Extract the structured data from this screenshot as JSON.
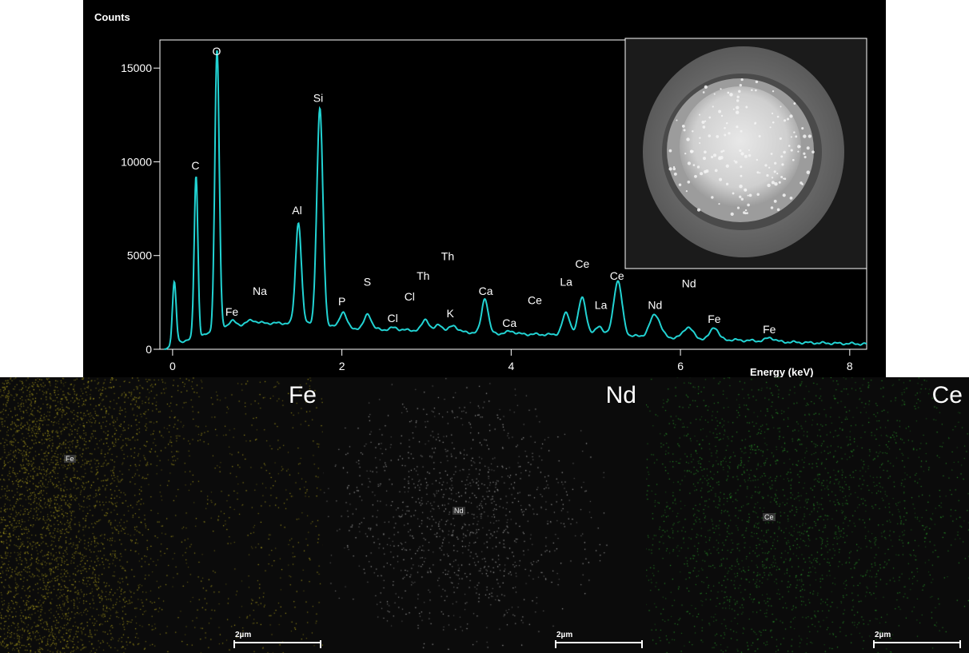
{
  "chart_data": {
    "type": "line",
    "ylabel": "Counts",
    "xlabel": "Energy (keV)",
    "xlim": [
      -0.15,
      8.2
    ],
    "ylim": [
      0,
      16500
    ],
    "x_ticks": [
      0,
      2,
      4,
      6,
      8
    ],
    "y_ticks": [
      0,
      5000,
      10000,
      15000
    ],
    "series_color": "#22d3d3",
    "baseline": [
      [
        -0.1,
        0
      ],
      [
        0.1,
        420
      ],
      [
        0.3,
        600
      ],
      [
        0.6,
        1200
      ],
      [
        1.0,
        1400
      ],
      [
        1.6,
        1380
      ],
      [
        2.0,
        1150
      ],
      [
        2.5,
        1050
      ],
      [
        3.0,
        1000
      ],
      [
        3.5,
        900
      ],
      [
        4.0,
        820
      ],
      [
        4.5,
        780
      ],
      [
        5.0,
        760
      ],
      [
        5.5,
        700
      ],
      [
        6.0,
        600
      ],
      [
        6.5,
        520
      ],
      [
        7.0,
        430
      ],
      [
        7.5,
        350
      ],
      [
        8.0,
        300
      ],
      [
        8.2,
        280
      ]
    ],
    "peaks": [
      {
        "x": 0.02,
        "h": 3300,
        "w": 0.022
      },
      {
        "x": 0.277,
        "h": 8700,
        "w": 0.022
      },
      {
        "x": 0.525,
        "h": 14950,
        "w": 0.026
      },
      {
        "x": 0.705,
        "h": 250,
        "w": 0.04
      },
      {
        "x": 0.93,
        "h": 180,
        "w": 0.05
      },
      {
        "x": 1.487,
        "h": 5400,
        "w": 0.034
      },
      {
        "x": 1.74,
        "h": 11500,
        "w": 0.036
      },
      {
        "x": 2.013,
        "h": 850,
        "w": 0.04
      },
      {
        "x": 2.307,
        "h": 800,
        "w": 0.04
      },
      {
        "x": 2.62,
        "h": 120,
        "w": 0.04
      },
      {
        "x": 2.99,
        "h": 600,
        "w": 0.04
      },
      {
        "x": 3.15,
        "h": 350,
        "w": 0.04
      },
      {
        "x": 3.32,
        "h": 330,
        "w": 0.045
      },
      {
        "x": 3.69,
        "h": 1850,
        "w": 0.038
      },
      {
        "x": 4.0,
        "h": 150,
        "w": 0.045
      },
      {
        "x": 4.65,
        "h": 1150,
        "w": 0.045
      },
      {
        "x": 4.84,
        "h": 2000,
        "w": 0.045
      },
      {
        "x": 5.04,
        "h": 500,
        "w": 0.04
      },
      {
        "x": 5.26,
        "h": 2900,
        "w": 0.05
      },
      {
        "x": 5.7,
        "h": 1200,
        "w": 0.06
      },
      {
        "x": 6.09,
        "h": 600,
        "w": 0.055
      },
      {
        "x": 6.4,
        "h": 650,
        "w": 0.045
      },
      {
        "x": 7.06,
        "h": 200,
        "w": 0.05
      }
    ],
    "annotations": [
      {
        "text": "O",
        "x": 0.52,
        "y": 15700
      },
      {
        "text": "C",
        "x": 0.27,
        "y": 9600
      },
      {
        "text": "Si",
        "x": 1.72,
        "y": 13200
      },
      {
        "text": "Al",
        "x": 1.47,
        "y": 7200
      },
      {
        "text": "Fe",
        "x": 0.7,
        "y": 1800
      },
      {
        "text": "Na",
        "x": 1.03,
        "y": 2900
      },
      {
        "text": "P",
        "x": 2.0,
        "y": 2350
      },
      {
        "text": "S",
        "x": 2.3,
        "y": 3400
      },
      {
        "text": "Cl",
        "x": 2.6,
        "y": 1450
      },
      {
        "text": "Cl",
        "x": 2.8,
        "y": 2600
      },
      {
        "text": "Th",
        "x": 3.25,
        "y": 4750
      },
      {
        "text": "Th",
        "x": 2.96,
        "y": 3700
      },
      {
        "text": "K",
        "x": 3.28,
        "y": 1700
      },
      {
        "text": "Ca",
        "x": 3.7,
        "y": 2900
      },
      {
        "text": "Ca",
        "x": 3.98,
        "y": 1200
      },
      {
        "text": "Ce",
        "x": 4.28,
        "y": 2400
      },
      {
        "text": "La",
        "x": 4.65,
        "y": 3400
      },
      {
        "text": "Ce",
        "x": 4.84,
        "y": 4350
      },
      {
        "text": "La",
        "x": 5.06,
        "y": 2150
      },
      {
        "text": "Ce",
        "x": 5.25,
        "y": 3700
      },
      {
        "text": "Nd",
        "x": 6.1,
        "y": 3300
      },
      {
        "text": "Nd",
        "x": 5.7,
        "y": 2150
      },
      {
        "text": "Fe",
        "x": 6.4,
        "y": 1400
      },
      {
        "text": "Fe",
        "x": 7.05,
        "y": 850
      }
    ]
  },
  "maps": [
    {
      "title": "Fe",
      "label": "Fe",
      "scale": "2µm",
      "color": "#c8b820"
    },
    {
      "title": "Nd",
      "label": "Nd",
      "scale": "2µm",
      "color": "#d0d0d0"
    },
    {
      "title": "Ce",
      "label": "Ce",
      "scale": "2µm",
      "color": "#30b030"
    }
  ]
}
